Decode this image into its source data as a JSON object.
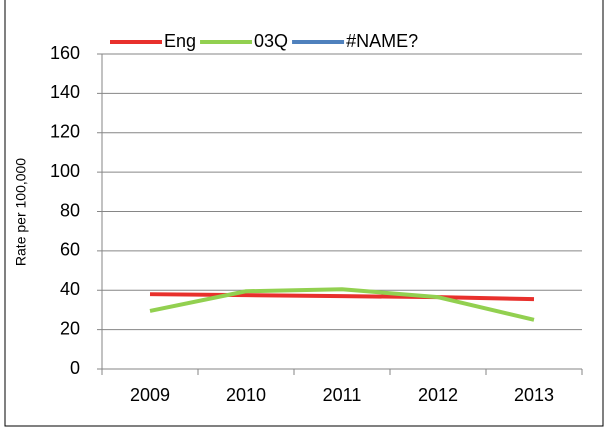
{
  "chart_data": {
    "type": "line",
    "y_label": "Rate per 100,000",
    "categories": [
      "2009",
      "2010",
      "2011",
      "2012",
      "2013"
    ],
    "series": [
      {
        "name": "Eng",
        "color": "#e8302c",
        "values": [
          38,
          37.5,
          37,
          36.5,
          35.5
        ]
      },
      {
        "name": "03Q",
        "color": "#92d050",
        "values": [
          29.5,
          39.5,
          40.5,
          36.5,
          25
        ]
      },
      {
        "name": "#NAME?",
        "color": "#4f81bd",
        "values": [
          null,
          null,
          null,
          null,
          null
        ]
      }
    ],
    "ylim": [
      0,
      160
    ],
    "yticks": [
      0,
      20,
      40,
      60,
      80,
      100,
      120,
      140,
      160
    ],
    "grid": true,
    "legend": "top"
  }
}
